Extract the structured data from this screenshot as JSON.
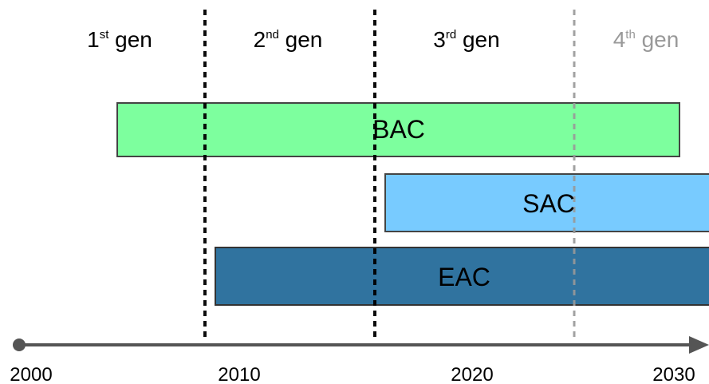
{
  "generations": [
    {
      "num": "1",
      "sup": "st",
      "word": "gen",
      "color": "#000000"
    },
    {
      "num": "2",
      "sup": "nd",
      "word": "gen",
      "color": "#000000"
    },
    {
      "num": "3",
      "sup": "rd",
      "word": "gen",
      "color": "#000000"
    },
    {
      "num": "4",
      "sup": "th",
      "word": "gen",
      "color": "#999999"
    }
  ],
  "bars": [
    {
      "label": "BAC",
      "fill": "#7dff9e",
      "stroke": "#444444"
    },
    {
      "label": "SAC",
      "fill": "#78cbff",
      "stroke": "#444444"
    },
    {
      "label": "EAC",
      "fill": "#30739f",
      "stroke": "#333333"
    }
  ],
  "axis": {
    "years": [
      "2000",
      "2010",
      "2020",
      "2030"
    ],
    "line_color": "#555555"
  },
  "dividers": {
    "solid_color": "#000000",
    "future_color": "#999999"
  }
}
